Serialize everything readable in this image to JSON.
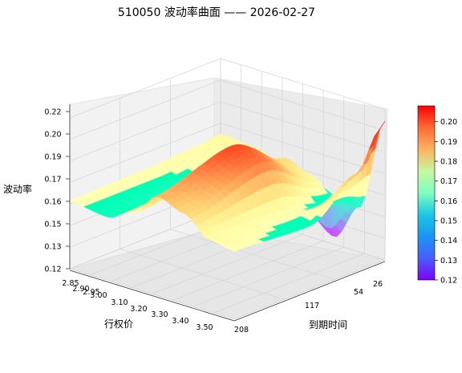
{
  "chart_data": {
    "type": "surface",
    "title": "510050 波动率曲面 —— 2026-02-27",
    "xlabel": "行权价",
    "ylabel": "到期时间",
    "zlabel": "波动率",
    "x_ticks": [
      "2.85",
      "2.90",
      "2.95",
      "3.00",
      "3.10",
      "3.20",
      "3.30",
      "3.40",
      "3.50"
    ],
    "y_ticks": [
      "26",
      "54",
      "117",
      "208"
    ],
    "z_ticks": [
      "0.12",
      "0.13",
      "0.15",
      "0.16",
      "0.17",
      "0.19",
      "0.20",
      "0.22"
    ],
    "colorbar_ticks": [
      "0.12",
      "0.13",
      "0.14",
      "0.15",
      "0.16",
      "0.17",
      "0.18",
      "0.19",
      "0.20"
    ],
    "colormap": "rainbow",
    "vmin": 0.12,
    "vmax": 0.208,
    "strikes": [
      2.85,
      3.0,
      3.1,
      3.2,
      3.3,
      3.4,
      3.5
    ],
    "expiries": [
      26,
      54,
      117,
      208
    ],
    "iv": [
      [
        0.17,
        0.168,
        0.158,
        0.135,
        0.125,
        0.15,
        0.212
      ],
      [
        0.168,
        0.165,
        0.17,
        0.178,
        0.172,
        0.16,
        0.185
      ],
      [
        0.166,
        0.16,
        0.175,
        0.2,
        0.195,
        0.165,
        0.162
      ],
      [
        0.165,
        0.162,
        0.17,
        0.186,
        0.18,
        0.168,
        0.165
      ]
    ],
    "grid": true
  }
}
